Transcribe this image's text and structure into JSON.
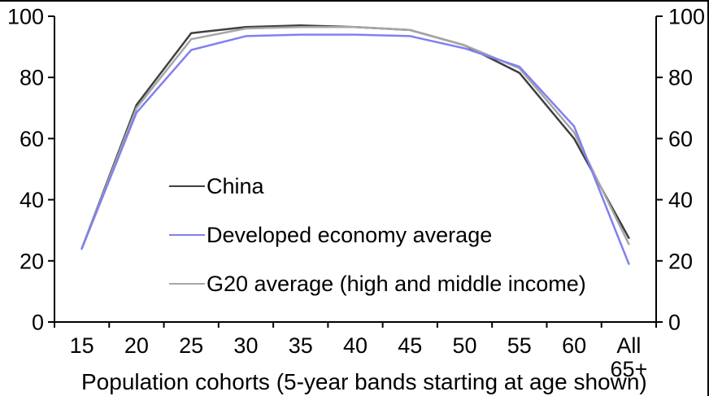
{
  "chart_data": {
    "type": "line",
    "categories": [
      "15",
      "20",
      "25",
      "30",
      "35",
      "40",
      "45",
      "50",
      "55",
      "60",
      "All\n65+"
    ],
    "series": [
      {
        "name": "China",
        "color": "#3F3F3F",
        "values": [
          24,
          71,
          94.5,
          96.5,
          97,
          96.5,
          95.5,
          90.5,
          81.5,
          60,
          27.5
        ]
      },
      {
        "name": "Developed economy average",
        "color": "#8080F0",
        "values": [
          24,
          68.5,
          89,
          93.5,
          94,
          94,
          93.5,
          89.5,
          83.5,
          64,
          19
        ]
      },
      {
        "name": "G20 average (high and middle income)",
        "color": "#A6A6A6",
        "values": [
          24,
          70,
          92.5,
          96,
          96.5,
          96.5,
          95.5,
          90.5,
          83,
          62,
          25.5
        ]
      }
    ],
    "xlabel": "Population cohorts (5-year bands starting at age shown)",
    "ylabel": "",
    "title": "",
    "ylim": [
      0,
      100
    ],
    "yticks": [
      0,
      20,
      40,
      60,
      80,
      100
    ],
    "grid": false,
    "dual_y_axis": true,
    "legend_position": "inside-center-left",
    "axis_color": "#000000"
  }
}
